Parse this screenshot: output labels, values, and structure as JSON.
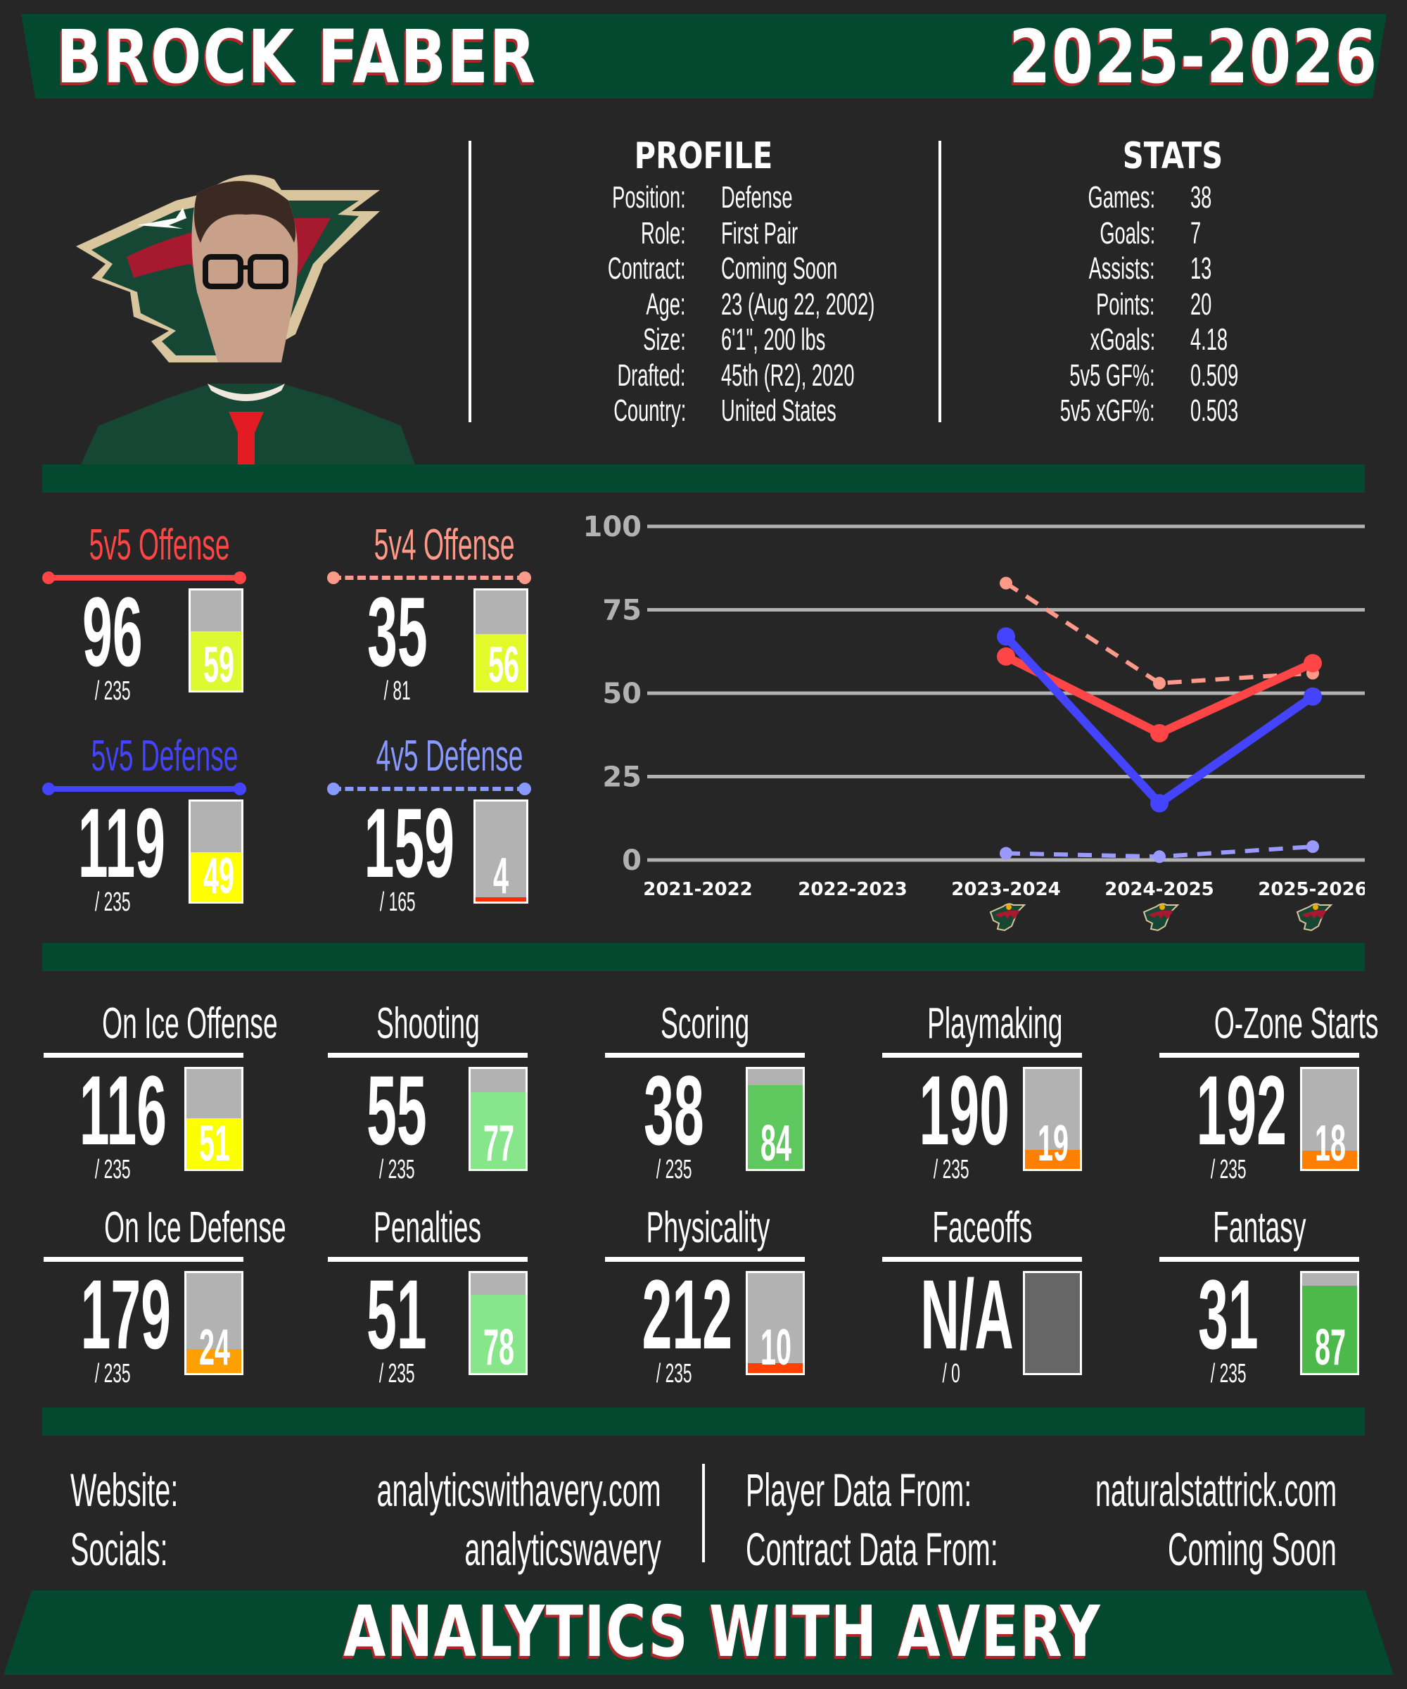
{
  "header": {
    "player_name": "BROCK FABER",
    "season": "2025-2026"
  },
  "colors": {
    "background": "#262626",
    "banner_green": "#034930",
    "shadow_red": "#b0252a",
    "offense_5v5": "#ff4545",
    "offense_5v4": "#ff9a8a",
    "defense_5v5": "#4444ff",
    "defense_4v5": "#8899ff",
    "gauge_track": "#b2b2b2"
  },
  "photo": {
    "alt": "Player headshot over Minnesota Wild logo"
  },
  "profile": {
    "heading": "PROFILE",
    "rows": [
      {
        "label": "Position:",
        "value": "Defense"
      },
      {
        "label": "Role:",
        "value": "First Pair"
      },
      {
        "label": "Contract:",
        "value": "Coming Soon"
      },
      {
        "label": "Age:",
        "value": "23 (Aug 22, 2002)"
      },
      {
        "label": "Size:",
        "value": "6'1\", 200 lbs"
      },
      {
        "label": "Drafted:",
        "value": "45th (R2), 2020"
      },
      {
        "label": "Country:",
        "value": "United States"
      }
    ]
  },
  "stats": {
    "heading": "STATS",
    "rows": [
      {
        "label": "Games:",
        "value": "38"
      },
      {
        "label": "Goals:",
        "value": "7"
      },
      {
        "label": "Assists:",
        "value": "13"
      },
      {
        "label": "Points:",
        "value": "20"
      },
      {
        "label": "xGoals:",
        "value": "4.18"
      },
      {
        "label": "5v5 GF%:",
        "value": "0.509"
      },
      {
        "label": "5v5 xGF%:",
        "value": "0.503"
      }
    ]
  },
  "ratings": [
    {
      "title": "5v5 Offense",
      "rank": "96",
      "of": "/ 235",
      "percentile": "59",
      "pct_value": 59,
      "fill": "#dcfa31",
      "title_color": "#ff4545",
      "line": "solid"
    },
    {
      "title": "5v4 Offense",
      "rank": "35",
      "of": "/ 81",
      "percentile": "56",
      "pct_value": 56,
      "fill": "#e3fa2a",
      "title_color": "#ff9a8a",
      "line": "dashed"
    },
    {
      "title": "5v5 Defense",
      "rank": "119",
      "of": "/ 235",
      "percentile": "49",
      "pct_value": 49,
      "fill": "#ffff00",
      "title_color": "#4444ff",
      "line": "solid"
    },
    {
      "title": "4v5 Defense",
      "rank": "159",
      "of": "/ 165",
      "percentile": "4",
      "pct_value": 4,
      "fill": "#ff2a00",
      "title_color": "#8899ff",
      "line": "dashed"
    }
  ],
  "metrics": [
    {
      "title": "On Ice Offense",
      "rank": "116",
      "of": "/ 235",
      "percentile": "51",
      "pct_value": 51,
      "fill": "#fbff00"
    },
    {
      "title": "Shooting",
      "rank": "55",
      "of": "/ 235",
      "percentile": "77",
      "pct_value": 77,
      "fill": "#86e689"
    },
    {
      "title": "Scoring",
      "rank": "38",
      "of": "/ 235",
      "percentile": "84",
      "pct_value": 84,
      "fill": "#5ec85e"
    },
    {
      "title": "Playmaking",
      "rank": "190",
      "of": "/ 235",
      "percentile": "19",
      "pct_value": 19,
      "fill": "#ff8000"
    },
    {
      "title": "O-Zone Starts",
      "rank": "192",
      "of": "/ 235",
      "percentile": "18",
      "pct_value": 18,
      "fill": "#ff8000"
    },
    {
      "title": "On Ice Defense",
      "rank": "179",
      "of": "/ 235",
      "percentile": "24",
      "pct_value": 24,
      "fill": "#ff9f00"
    },
    {
      "title": "Penalties",
      "rank": "51",
      "of": "/ 235",
      "percentile": "78",
      "pct_value": 78,
      "fill": "#86e689"
    },
    {
      "title": "Physicality",
      "rank": "212",
      "of": "/ 235",
      "percentile": "10",
      "pct_value": 10,
      "fill": "#ff4000"
    },
    {
      "title": "Faceoffs",
      "rank": "N/A",
      "of": "/ 0",
      "percentile": "",
      "pct_value": 100,
      "fill": "#666666"
    },
    {
      "title": "Fantasy",
      "rank": "31",
      "of": "/ 235",
      "percentile": "87",
      "pct_value": 87,
      "fill": "#4bba4b"
    }
  ],
  "chart_data": {
    "type": "line",
    "title": "",
    "xlabel": "",
    "ylabel": "",
    "x": [
      "2021-2022",
      "2022-2023",
      "2023-2024",
      "2024-2025",
      "2025-2026"
    ],
    "yticks": [
      "0",
      "25",
      "50",
      "75",
      "100"
    ],
    "ylim": [
      0,
      100
    ],
    "grid": true,
    "team_logo_seasons": [
      "2023-2024",
      "2024-2025",
      "2025-2026"
    ],
    "series": [
      {
        "name": "5v5 Offense",
        "color": "#ff4545",
        "style": "solid",
        "values": [
          null,
          null,
          61,
          38,
          59
        ]
      },
      {
        "name": "5v4 Offense",
        "color": "#ff9a8a",
        "style": "dashed",
        "values": [
          null,
          null,
          83,
          53,
          56
        ]
      },
      {
        "name": "5v5 Defense",
        "color": "#4444ff",
        "style": "solid",
        "values": [
          null,
          null,
          67,
          17,
          49
        ]
      },
      {
        "name": "4v5 Defense",
        "color": "#9999ff",
        "style": "dashed",
        "values": [
          null,
          null,
          2,
          1,
          4
        ]
      }
    ]
  },
  "footer": {
    "left": [
      {
        "label": "Website:",
        "value": "analyticswithavery.com"
      },
      {
        "label": "Socials:",
        "value": "analyticswavery"
      }
    ],
    "right": [
      {
        "label": "Player Data From:",
        "value": "naturalstattrick.com"
      },
      {
        "label": "Contract Data From:",
        "value": "Coming Soon"
      }
    ],
    "brand": "ANALYTICS WITH AVERY"
  }
}
